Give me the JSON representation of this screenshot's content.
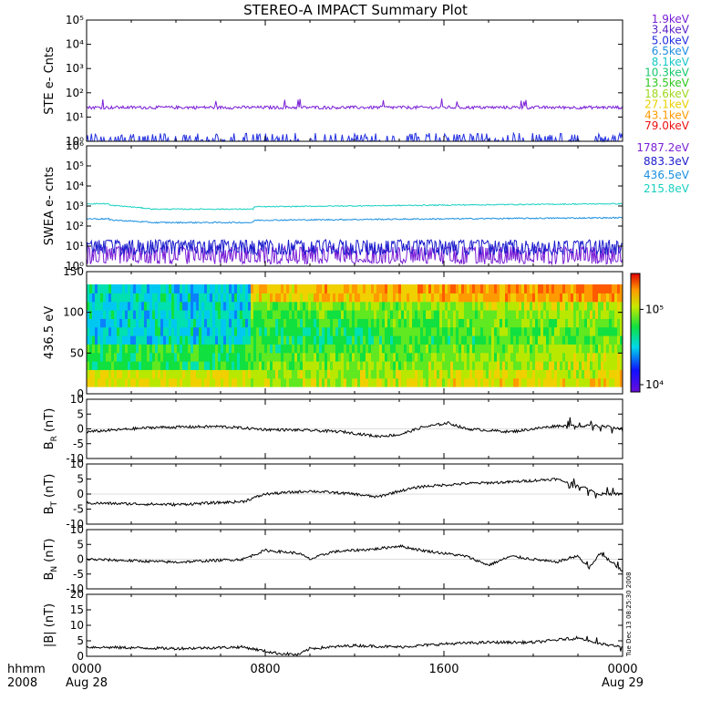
{
  "title": "STEREO-A IMPACT Summary Plot",
  "footer": {
    "hhmm_label": "hhmm",
    "year_label": "2008",
    "stamp": "Tue Dec 13 08:25:30 2008"
  },
  "colors": {
    "ste": [
      "#7a1fd6",
      "#5a22c8",
      "#2430e0",
      "#1f8fe0",
      "#18c8c8",
      "#18c870",
      "#30c820",
      "#a0d820",
      "#e8d000",
      "#ff9900",
      "#ee1111"
    ],
    "swea": [
      "#7a1fd6",
      "#1a1acc",
      "#1a8fe0",
      "#18d0c0"
    ]
  },
  "chart_data": [
    {
      "type": "line",
      "ylabel": "STE e- Cnts",
      "yscale": "log",
      "ylim": [
        1,
        100000
      ],
      "yticks": [
        "10⁰",
        "10¹",
        "10²",
        "10³",
        "10⁴",
        "10⁵"
      ],
      "legend": {
        "placement": "right",
        "entries": [
          "1.9keV",
          "3.4keV",
          "5.0keV",
          "6.5keV",
          "8.1keV",
          "10.3keV",
          "13.5keV",
          "18.6keV",
          "27.1keV",
          "43.1keV",
          "79.0keV"
        ]
      },
      "series": [
        {
          "name": "1.9keV",
          "level": 25
        },
        {
          "name": "3.4keV",
          "level": 1
        }
      ]
    },
    {
      "type": "line",
      "ylabel": "SWEA e- cnts",
      "yscale": "log",
      "ylim": [
        1,
        1000000
      ],
      "yticks": [
        "10⁰",
        "10¹",
        "10²",
        "10³",
        "10⁴",
        "10⁵",
        "10⁶"
      ],
      "legend": {
        "placement": "right",
        "entries": [
          "1787.2eV",
          "883.3eV",
          "436.5eV",
          "215.8eV"
        ]
      },
      "series": [
        {
          "name": "215.8eV",
          "start": 1300,
          "dip": 700,
          "end": 1300
        },
        {
          "name": "436.5eV",
          "start": 230,
          "dip": 150,
          "end": 260
        },
        {
          "name": "883.3eV",
          "level": 10
        },
        {
          "name": "1787.2eV",
          "level": 3
        }
      ]
    },
    {
      "type": "heatmap",
      "ylabel": "436.5 eV",
      "ylim": [
        0,
        180
      ],
      "yticks": [
        "0",
        "50",
        "100",
        "150"
      ],
      "colorbar": {
        "scale": "log",
        "range": [
          8000,
          300000
        ],
        "ticks": [
          "10⁴",
          "10⁵"
        ]
      },
      "note": "pitch angle distribution; higher flux near 0 and 180 after 0730"
    },
    {
      "type": "line",
      "ylabel_base": "B",
      "ylabel_sub": "R",
      "ylabel_unit": "(nT)",
      "ylim": [
        -10,
        10
      ],
      "yticks": [
        "-10",
        "-5",
        "0",
        "5",
        "10"
      ],
      "keypoints": [
        [
          0,
          -1
        ],
        [
          3,
          0.5
        ],
        [
          6,
          0.8
        ],
        [
          8,
          -0.2
        ],
        [
          10,
          -0.5
        ],
        [
          11.5,
          -1
        ],
        [
          13,
          -2.5
        ],
        [
          14,
          -2
        ],
        [
          15,
          0.5
        ],
        [
          16.2,
          2
        ],
        [
          17,
          0
        ],
        [
          19,
          -1
        ],
        [
          21,
          1
        ],
        [
          23,
          1
        ],
        [
          24,
          0
        ]
      ]
    },
    {
      "type": "line",
      "ylabel_base": "B",
      "ylabel_sub": "T",
      "ylabel_unit": "(nT)",
      "ylim": [
        -10,
        10
      ],
      "yticks": [
        "-10",
        "-5",
        "0",
        "5",
        "10"
      ],
      "keypoints": [
        [
          0,
          -3
        ],
        [
          4,
          -3.5
        ],
        [
          7,
          -2.5
        ],
        [
          8,
          0
        ],
        [
          10,
          1
        ],
        [
          12,
          0
        ],
        [
          13,
          -1
        ],
        [
          14,
          1
        ],
        [
          15,
          2.5
        ],
        [
          17,
          3.5
        ],
        [
          19,
          4
        ],
        [
          21,
          5
        ],
        [
          22,
          3
        ],
        [
          23,
          0
        ],
        [
          24,
          0
        ]
      ]
    },
    {
      "type": "line",
      "ylabel_base": "B",
      "ylabel_sub": "N",
      "ylabel_unit": "(nT)",
      "ylim": [
        -10,
        10
      ],
      "yticks": [
        "-10",
        "-5",
        "0",
        "5",
        "10"
      ],
      "keypoints": [
        [
          0,
          0
        ],
        [
          4,
          -1
        ],
        [
          7,
          0
        ],
        [
          8,
          3
        ],
        [
          9.5,
          2
        ],
        [
          10,
          0
        ],
        [
          11,
          2.5
        ],
        [
          13,
          3.5
        ],
        [
          14,
          4.5
        ],
        [
          15,
          3
        ],
        [
          17,
          1
        ],
        [
          18,
          -2
        ],
        [
          19,
          1
        ],
        [
          20,
          0
        ],
        [
          21,
          -1
        ],
        [
          22,
          1
        ],
        [
          22.5,
          -3
        ],
        [
          23,
          2
        ],
        [
          24,
          -4
        ]
      ]
    },
    {
      "type": "line",
      "ylabel": "|B| (nT)",
      "ylim": [
        0,
        20
      ],
      "yticks": [
        "0",
        "5",
        "10",
        "15",
        "20"
      ],
      "keypoints": [
        [
          0,
          3
        ],
        [
          4,
          2.5
        ],
        [
          7,
          3
        ],
        [
          8.5,
          1
        ],
        [
          9.5,
          0.5
        ],
        [
          10,
          2.5
        ],
        [
          12,
          3.5
        ],
        [
          14,
          3
        ],
        [
          16,
          4
        ],
        [
          18,
          4.5
        ],
        [
          20,
          4.5
        ],
        [
          22,
          6
        ],
        [
          23,
          4
        ],
        [
          24,
          3
        ]
      ]
    }
  ],
  "x_axis": {
    "range_hours": [
      0,
      24
    ],
    "ticks": [
      {
        "hour": 0,
        "label": "0000",
        "sublabel": "Aug 28"
      },
      {
        "hour": 8,
        "label": "0800",
        "sublabel": ""
      },
      {
        "hour": 16,
        "label": "1600",
        "sublabel": ""
      },
      {
        "hour": 24,
        "label": "0000",
        "sublabel": "Aug 29"
      }
    ]
  }
}
